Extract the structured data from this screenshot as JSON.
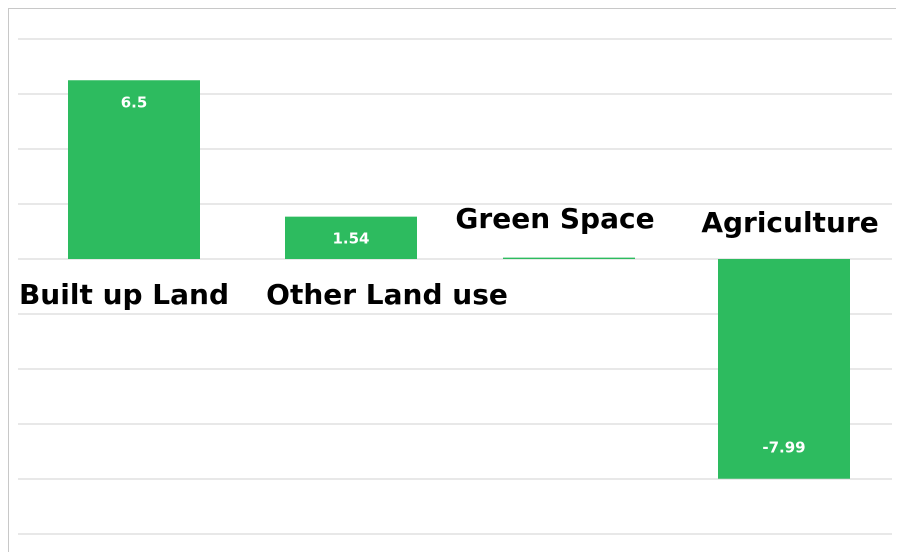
{
  "chart_data": {
    "type": "bar",
    "categories": [
      "Built up Land",
      "Other Land use",
      "Green Space",
      "Agriculture"
    ],
    "values": [
      6.5,
      1.54,
      0.05,
      -7.99
    ],
    "data_labels": [
      "6.5",
      "1.54",
      "",
      "-7.99"
    ],
    "title": "",
    "xlabel": "",
    "ylabel": "",
    "ylim": [
      -10,
      8
    ],
    "grid": true,
    "legend": "none",
    "bar_color": "#2dbb5f",
    "grid_color": "#d9d9d9"
  }
}
